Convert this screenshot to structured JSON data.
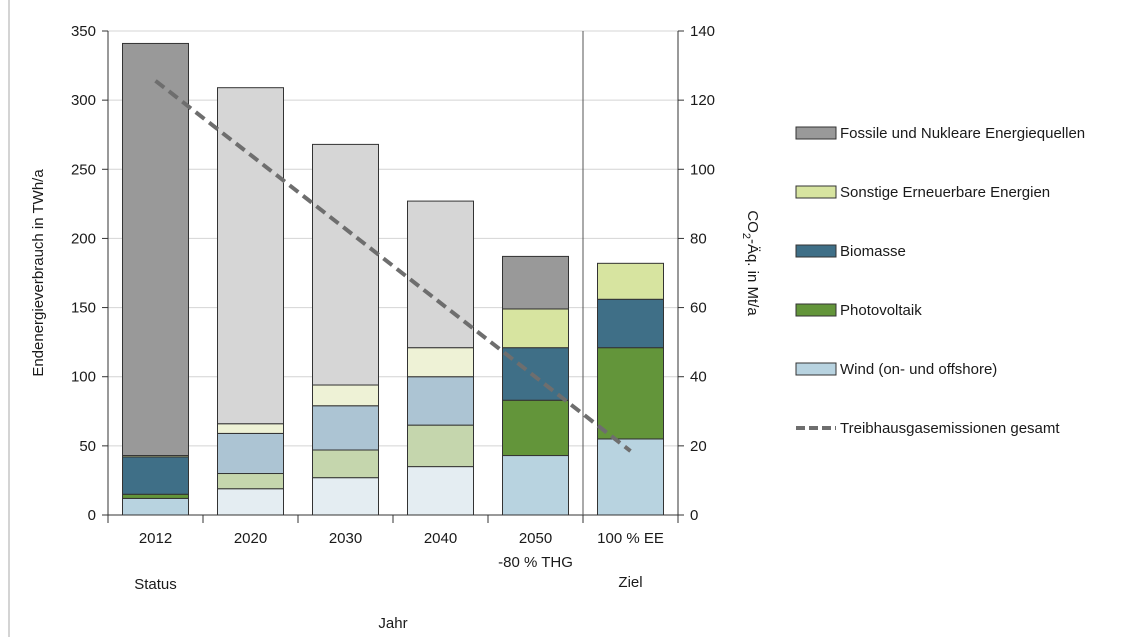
{
  "chart_data": {
    "type": "bar",
    "stacked": true,
    "categories": [
      "2012",
      "2020",
      "2030",
      "2040",
      "2050",
      "100 % EE"
    ],
    "category_sublabels": [
      "Status",
      "",
      "",
      "",
      "-80 % THG",
      "Ziel"
    ],
    "xlabel": "Jahr",
    "ylabel": "Endenergieverbrauch in TWh/a",
    "y2label_parts": [
      "CO",
      "2",
      "-Äq. in Mt/a"
    ],
    "ylim": [
      0,
      350
    ],
    "yticks": [
      0,
      50,
      100,
      150,
      200,
      250,
      300,
      350
    ],
    "y2lim": [
      0,
      140
    ],
    "y2ticks": [
      0,
      20,
      40,
      60,
      80,
      100,
      120,
      140
    ],
    "grid": true,
    "legend_position": "right",
    "series": [
      {
        "name": "Wind (on- und offshore)",
        "color": "#b8d3e0",
        "faded_color": "#e4edf2",
        "values": [
          12,
          19,
          27,
          35,
          43,
          55
        ]
      },
      {
        "name": "Photovoltaik",
        "color": "#63953a",
        "faded_color": "#c5d6ad",
        "values": [
          3,
          11,
          20,
          30,
          40,
          66
        ]
      },
      {
        "name": "Biomasse",
        "color": "#3f6f87",
        "faded_color": "#acc4d3",
        "values": [
          27,
          29,
          32,
          35,
          38,
          35
        ]
      },
      {
        "name": "Sonstige Erneuerbare Energien",
        "color": "#d7e4a0",
        "faded_color": "#eef2d6",
        "values": [
          1,
          7,
          15,
          21,
          28,
          26
        ]
      },
      {
        "name": "Fossile und Nukleare Energiequellen",
        "color": "#999999",
        "faded_color": "#d6d6d6",
        "values": [
          298,
          243,
          174,
          106,
          38,
          0
        ]
      }
    ],
    "faded_categories": [
      false,
      true,
      true,
      true,
      false,
      false
    ],
    "line_series": {
      "name": "Treibhausgasemissionen gesamt",
      "color": "#6e6e6e",
      "axis": "right",
      "x_from": "2012",
      "x_to": "100 % EE",
      "values": [
        125.6,
        18.5
      ]
    }
  }
}
